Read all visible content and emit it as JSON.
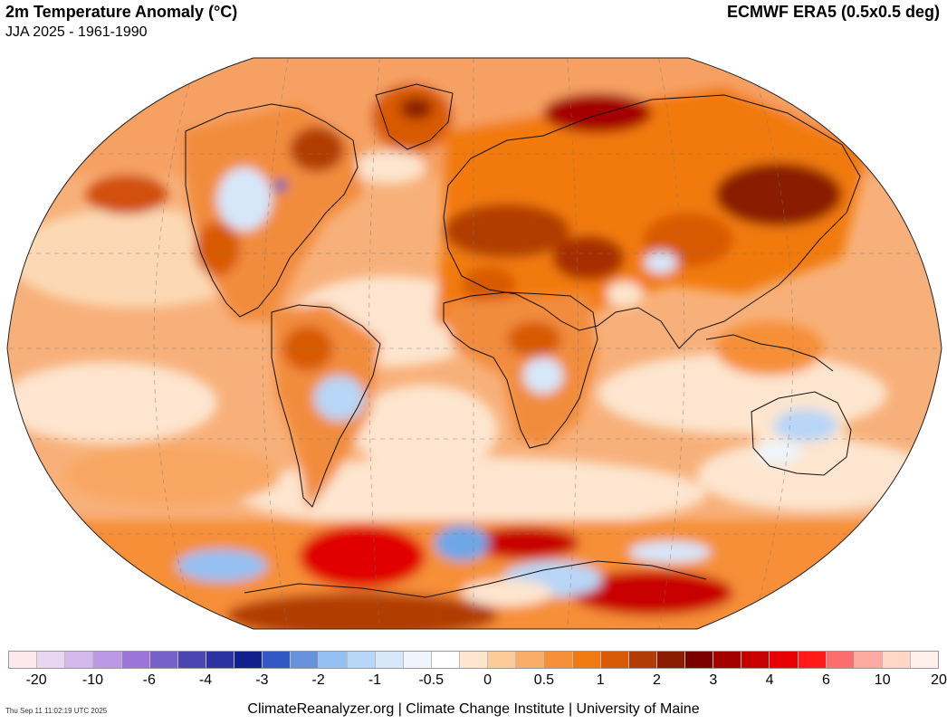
{
  "header": {
    "title": "2m Temperature Anomaly (°C)",
    "subtitle": "JJA 2025 - 1961-1990",
    "source": "ECMWF ERA5 (0.5x0.5 deg)"
  },
  "colors": {
    "ocean_light": "#fcd9b4",
    "ocean_mid": "#f8a864",
    "land_warm": "#f28c3c",
    "hot": "#d2500a",
    "very_hot": "#a82e04",
    "extreme": "#e00000",
    "cool_light": "#cfe2f7",
    "cool": "#6ea6e6",
    "cold": "#3058c8",
    "coast": "#000000"
  },
  "legend": {
    "swatches": [
      "#fde8ee",
      "#e9d6f1",
      "#d6b9ec",
      "#bd98e4",
      "#9d74d9",
      "#7561c8",
      "#4b45b2",
      "#2b33a0",
      "#10208c",
      "#3258c4",
      "#6892dc",
      "#95c0f2",
      "#b8d6f7",
      "#d7e7fa",
      "#eef5fd",
      "#ffffff",
      "#fde5cf",
      "#fccb98",
      "#faad66",
      "#f68f38",
      "#f27a10",
      "#d85a06",
      "#b23c04",
      "#8a1c02",
      "#7a0000",
      "#a40000",
      "#c80000",
      "#e80000",
      "#ff1a1a",
      "#ff6e6e",
      "#ffaaa0",
      "#ffd6c8",
      "#fff0ec"
    ],
    "ticks": [
      "-20",
      "-10",
      "-6",
      "-4",
      "-3",
      "-2",
      "-1",
      "-0.5",
      "0",
      "0.5",
      "1",
      "2",
      "3",
      "4",
      "6",
      "10",
      "20"
    ]
  },
  "footer": {
    "timestamp": "Thu Sep 11 11:02:19 UTC 2025",
    "credit": "ClimateReanalyzer.org | Climate Change Institute | University of Maine"
  }
}
